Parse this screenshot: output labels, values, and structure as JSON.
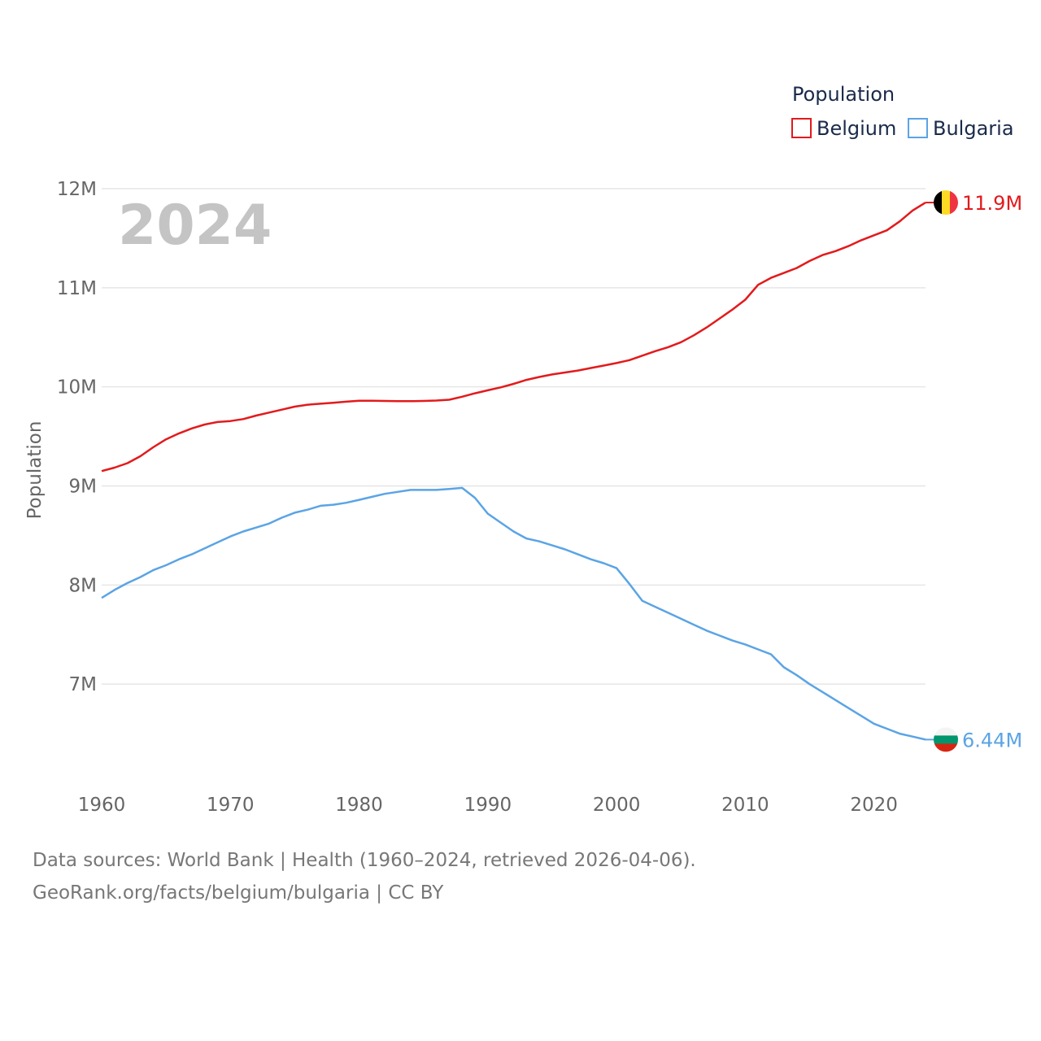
{
  "chart_data": {
    "type": "line",
    "title": "Population",
    "ylabel": "Population",
    "xlabel": "",
    "year_label": "2024",
    "xlim": [
      1960,
      2024
    ],
    "ylim": [
      6000000,
      12000000
    ],
    "xticks": [
      1960,
      1970,
      1980,
      1990,
      2000,
      2010,
      2020
    ],
    "yticks": [
      {
        "value": 12000000,
        "label": "12M"
      },
      {
        "value": 11000000,
        "label": "11M"
      },
      {
        "value": 10000000,
        "label": "10M"
      },
      {
        "value": 9000000,
        "label": "9M"
      },
      {
        "value": 8000000,
        "label": "8M"
      },
      {
        "value": 7000000,
        "label": "7M"
      }
    ],
    "x": [
      1960,
      1961,
      1962,
      1963,
      1964,
      1965,
      1966,
      1967,
      1968,
      1969,
      1970,
      1971,
      1972,
      1973,
      1974,
      1975,
      1976,
      1977,
      1978,
      1979,
      1980,
      1981,
      1982,
      1983,
      1984,
      1985,
      1986,
      1987,
      1988,
      1989,
      1990,
      1991,
      1992,
      1993,
      1994,
      1995,
      1996,
      1997,
      1998,
      1999,
      2000,
      2001,
      2002,
      2003,
      2004,
      2005,
      2006,
      2007,
      2008,
      2009,
      2010,
      2011,
      2012,
      2013,
      2014,
      2015,
      2016,
      2017,
      2018,
      2019,
      2020,
      2021,
      2022,
      2023,
      2024
    ],
    "series": [
      {
        "name": "Belgium",
        "color": "#e31a1c",
        "end_label": "11.9M",
        "flag": "belgium-flag",
        "values": [
          9150000,
          9185000,
          9230000,
          9300000,
          9390000,
          9470000,
          9530000,
          9580000,
          9620000,
          9645000,
          9655000,
          9675000,
          9710000,
          9740000,
          9770000,
          9800000,
          9820000,
          9830000,
          9840000,
          9850000,
          9860000,
          9860000,
          9858000,
          9856000,
          9855000,
          9858000,
          9862000,
          9870000,
          9900000,
          9935000,
          9965000,
          9995000,
          10030000,
          10070000,
          10100000,
          10125000,
          10145000,
          10165000,
          10190000,
          10215000,
          10240000,
          10270000,
          10315000,
          10360000,
          10400000,
          10450000,
          10520000,
          10600000,
          10690000,
          10780000,
          10880000,
          11030000,
          11100000,
          11150000,
          11200000,
          11270000,
          11330000,
          11370000,
          11420000,
          11480000,
          11530000,
          11580000,
          11670000,
          11780000,
          11860000
        ]
      },
      {
        "name": "Bulgaria",
        "color": "#5ba4e5",
        "end_label": "6.44M",
        "flag": "bulgaria-flag",
        "values": [
          7870000,
          7950000,
          8020000,
          8080000,
          8150000,
          8200000,
          8260000,
          8310000,
          8370000,
          8430000,
          8490000,
          8540000,
          8580000,
          8620000,
          8680000,
          8730000,
          8760000,
          8800000,
          8810000,
          8830000,
          8860000,
          8890000,
          8920000,
          8940000,
          8960000,
          8960000,
          8960000,
          8970000,
          8980000,
          8880000,
          8720000,
          8630000,
          8540000,
          8470000,
          8440000,
          8400000,
          8360000,
          8310000,
          8260000,
          8220000,
          8170000,
          8010000,
          7840000,
          7780000,
          7720000,
          7660000,
          7600000,
          7540000,
          7490000,
          7440000,
          7400000,
          7350000,
          7300000,
          7170000,
          7090000,
          7000000,
          6920000,
          6840000,
          6760000,
          6680000,
          6600000,
          6550000,
          6500000,
          6470000,
          6440000
        ]
      }
    ]
  },
  "legend": {
    "title": "Population",
    "items": [
      {
        "label": "Belgium",
        "color": "#e31a1c"
      },
      {
        "label": "Bulgaria",
        "color": "#5ba4e5"
      }
    ]
  },
  "footer": {
    "line1": "Data sources: World Bank | Health (1960–2024, retrieved 2026-04-06).",
    "line2": "GeoRank.org/facts/belgium/bulgaria | CC BY"
  }
}
